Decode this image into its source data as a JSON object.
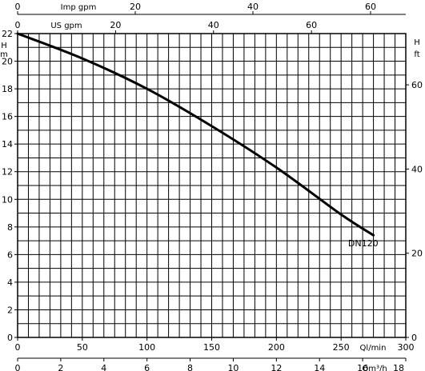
{
  "chart_data": {
    "type": "line",
    "title": "",
    "axes": {
      "left": {
        "label": "H m",
        "ticks": [
          0,
          2,
          4,
          6,
          8,
          10,
          12,
          14,
          16,
          18,
          20,
          22
        ],
        "ylim": [
          0,
          22
        ]
      },
      "right": {
        "label": "H ft",
        "ticks": [
          0,
          20,
          40,
          60
        ]
      },
      "bottom_1": {
        "label": "Ql/min",
        "ticks": [
          0,
          50,
          100,
          150,
          200,
          250,
          300
        ],
        "xlim": [
          0,
          300
        ]
      },
      "bottom_2": {
        "label": "Qm³/h",
        "ticks": [
          0,
          2,
          4,
          6,
          8,
          10,
          12,
          14,
          16,
          18
        ]
      },
      "top_1": {
        "label": "Imp gpm",
        "ticks": [
          0,
          20,
          40,
          60
        ]
      },
      "top_2": {
        "label": "US gpm",
        "ticks": [
          0,
          20,
          40,
          60
        ]
      }
    },
    "grid": true,
    "series": [
      {
        "name": "DN120",
        "x": [
          0,
          50,
          100,
          150,
          200,
          250,
          275
        ],
        "y": [
          22,
          20.2,
          18,
          15.3,
          12.3,
          8.9,
          7.4
        ]
      }
    ]
  }
}
